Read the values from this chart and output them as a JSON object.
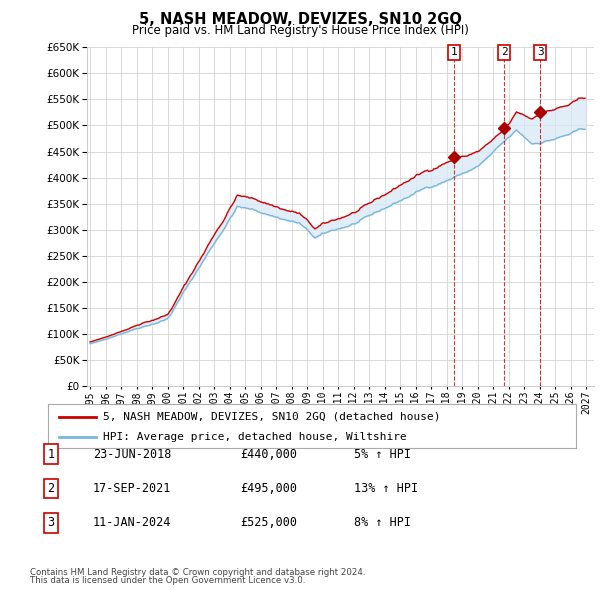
{
  "title": "5, NASH MEADOW, DEVIZES, SN10 2GQ",
  "subtitle": "Price paid vs. HM Land Registry's House Price Index (HPI)",
  "legend_line1": "5, NASH MEADOW, DEVIZES, SN10 2GQ (detached house)",
  "legend_line2": "HPI: Average price, detached house, Wiltshire",
  "footer1": "Contains HM Land Registry data © Crown copyright and database right 2024.",
  "footer2": "This data is licensed under the Open Government Licence v3.0.",
  "sales": [
    {
      "num": 1,
      "date": "23-JUN-2018",
      "price": "£440,000",
      "pct": "5% ↑ HPI",
      "year": 2018.47
    },
    {
      "num": 2,
      "date": "17-SEP-2021",
      "price": "£495,000",
      "pct": "13% ↑ HPI",
      "year": 2021.71
    },
    {
      "num": 3,
      "date": "11-JAN-2024",
      "price": "£525,000",
      "pct": "8% ↑ HPI",
      "year": 2024.03
    }
  ],
  "sale_values": [
    440000,
    495000,
    525000
  ],
  "hpi_color": "#7ab8d9",
  "price_color": "#cc0000",
  "fill_color": "#daeaf5",
  "grid_color": "#cccccc",
  "background_color": "#ffffff",
  "ylim": [
    0,
    650000
  ],
  "yticks": [
    0,
    50000,
    100000,
    150000,
    200000,
    250000,
    300000,
    350000,
    400000,
    450000,
    500000,
    550000,
    600000,
    650000
  ],
  "xlim_start": 1994.8,
  "xlim_end": 2027.5
}
